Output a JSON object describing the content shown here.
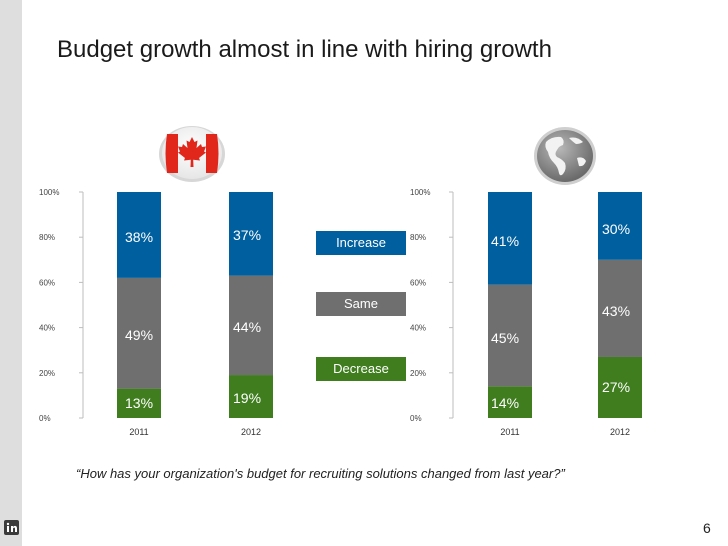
{
  "slide": {
    "title": "Budget growth almost in line with hiring growth",
    "question": "“How has your organization's budget for recruiting solutions changed from last year?”",
    "page_number": "6",
    "colors": {
      "rail": "#dedede",
      "title": "#1a1a1a"
    }
  },
  "chart_data": [
    {
      "type": "bar",
      "stacked": true,
      "region_icon": "canada-flag-icon",
      "categories": [
        "2011",
        "2012"
      ],
      "ylim": [
        0,
        100
      ],
      "yticks": [
        "0%",
        "20%",
        "40%",
        "60%",
        "80%",
        "100%"
      ],
      "series": [
        {
          "name": "Decrease",
          "values": [
            13,
            19
          ],
          "labels": [
            "13%",
            "19%"
          ]
        },
        {
          "name": "Same",
          "values": [
            49,
            44
          ],
          "labels": [
            "49%",
            "44%"
          ]
        },
        {
          "name": "Increase",
          "values": [
            38,
            37
          ],
          "labels": [
            "38%",
            "37%"
          ]
        }
      ]
    },
    {
      "type": "bar",
      "stacked": true,
      "region_icon": "globe-icon",
      "categories": [
        "2011",
        "2012"
      ],
      "ylim": [
        0,
        100
      ],
      "yticks": [
        "0%",
        "20%",
        "40%",
        "60%",
        "80%",
        "100%"
      ],
      "series": [
        {
          "name": "Decrease",
          "values": [
            14,
            27
          ],
          "labels": [
            "14%",
            "27%"
          ]
        },
        {
          "name": "Same",
          "values": [
            45,
            43
          ],
          "labels": [
            "45%",
            "43%"
          ]
        },
        {
          "name": "Increase",
          "values": [
            41,
            30
          ],
          "labels": [
            "41%",
            "30%"
          ]
        }
      ]
    }
  ],
  "legend": [
    {
      "name": "Increase",
      "label": "Increase",
      "color": "#005f9e"
    },
    {
      "name": "Same",
      "label": "Same",
      "color": "#6f6f6f"
    },
    {
      "name": "Decrease",
      "label": "Decrease",
      "color": "#3f7d1e"
    }
  ]
}
